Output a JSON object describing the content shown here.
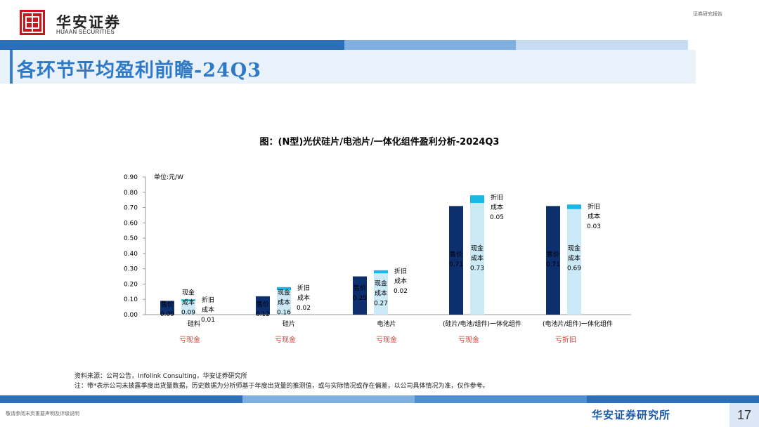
{
  "header": {
    "logo_cn": "华安证券",
    "logo_en": "HUAAN SECURITIES",
    "report_type": "证券研究报告"
  },
  "page_title": "各环节平均盈利前瞻-24Q3",
  "chart_title": "图：(N型)光伏硅片/电池片/一体化组件盈利分析-2024Q3",
  "colors": {
    "price": "#0e2f6e",
    "cash_cost": "#cce9f7",
    "depreciation": "#19b7e8",
    "loss_note": "#e03a2f",
    "brand_blue": "#1e5aa8"
  },
  "chart_data": {
    "type": "bar",
    "subtype": "stacked-comparison",
    "unit_label": "单位:元/W",
    "ylim": [
      0,
      0.9
    ],
    "yticks": [
      "0.00",
      "0.10",
      "0.20",
      "0.30",
      "0.40",
      "0.50",
      "0.60",
      "0.70",
      "0.80",
      "0.90"
    ],
    "grid": false,
    "groups": [
      {
        "category": "硅料",
        "price_label": "售价",
        "price": 0.09,
        "price_text": "0.09",
        "cash_label": "现金\n成本",
        "cash": 0.09,
        "cash_text": "0.09",
        "dep_label": "折旧\n成本",
        "dep": 0.01,
        "dep_text": "0.01",
        "note": "亏现金"
      },
      {
        "category": "硅片",
        "price_label": "售价",
        "price": 0.12,
        "price_text": "0.12",
        "cash_label": "现金\n成本",
        "cash": 0.16,
        "cash_text": "0.16",
        "dep_label": "折旧\n成本",
        "dep": 0.02,
        "dep_text": "0.02",
        "note": "亏现金"
      },
      {
        "category": "电池片",
        "price_label": "售价",
        "price": 0.25,
        "price_text": "0.25",
        "cash_label": "现金\n成本",
        "cash": 0.27,
        "cash_text": "0.27",
        "dep_label": "折旧\n成本",
        "dep": 0.02,
        "dep_text": "0.02",
        "note": "亏现金"
      },
      {
        "category": "(硅片/电池/组件)一体化组件",
        "price_label": "售价",
        "price": 0.71,
        "price_text": "0.71",
        "cash_label": "现金\n成本",
        "cash": 0.73,
        "cash_text": "0.73",
        "dep_label": "折旧\n成本",
        "dep": 0.05,
        "dep_text": "0.05",
        "note": "亏现金"
      },
      {
        "category": "(电池片/组件)一体化组件",
        "price_label": "售价",
        "price": 0.71,
        "price_text": "0.71",
        "cash_label": "现金\n成本",
        "cash": 0.69,
        "cash_text": "0.69",
        "dep_label": "折旧\n成本",
        "dep": 0.03,
        "dep_text": "0.03",
        "note": "亏折旧"
      }
    ]
  },
  "source": {
    "line1": "资料来源：公司公告，Infolink Consulting，华安证券研究所",
    "line2": "注：带*表示公司未披露季度出货量数据，历史数据为分析师基于年度出货量的推测值，或与实际情况或存在偏差，以公司具体情况为准，仅作参考。"
  },
  "footer": {
    "disclaimer": "敬请参阅末页重要声明及评级说明",
    "brand": "华安证券研究所",
    "page_number": "17"
  }
}
